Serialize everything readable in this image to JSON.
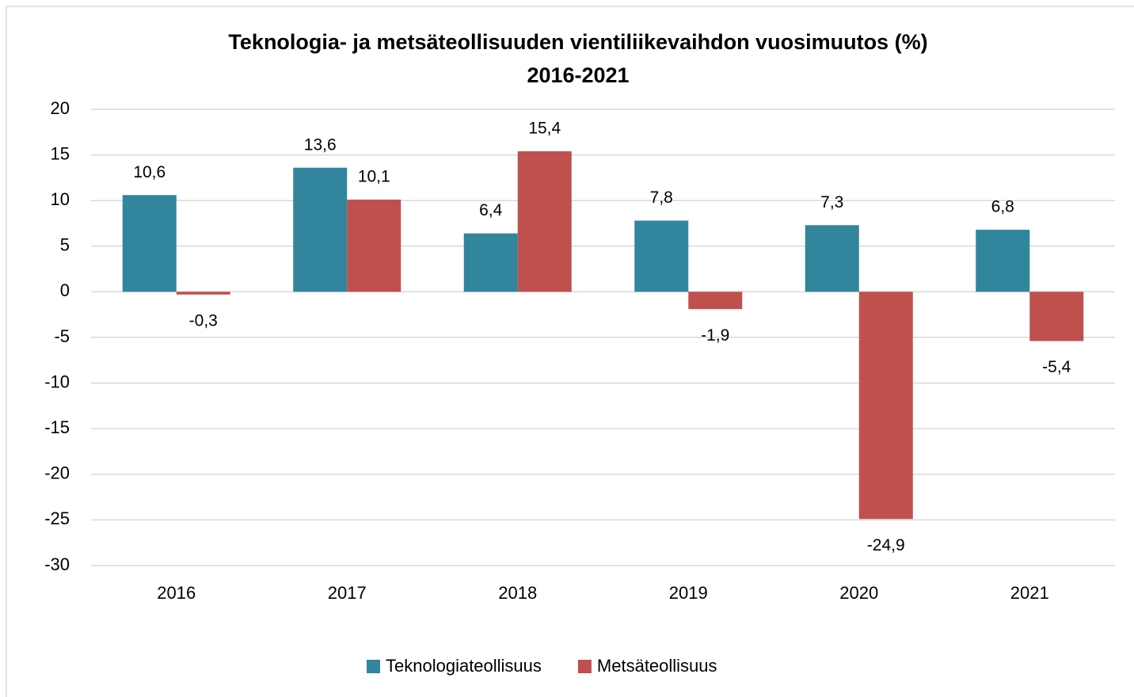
{
  "chart_data": {
    "type": "bar",
    "title": [
      "Teknologia- ja metsäteollisuuden vientiliikevaihdon vuosimuutos (%)",
      "2016-2021"
    ],
    "categories": [
      "2016",
      "2017",
      "2018",
      "2019",
      "2020",
      "2021"
    ],
    "series": [
      {
        "name": "Teknologiateollisuus",
        "color": "#31859c",
        "values": [
          10.6,
          13.6,
          6.4,
          7.8,
          7.3,
          6.8
        ],
        "value_labels": [
          "10,6",
          "13,6",
          "6,4",
          "7,8",
          "7,3",
          "6,8"
        ]
      },
      {
        "name": "Metsäteollisuus",
        "color": "#c0504d",
        "values": [
          -0.3,
          10.1,
          15.4,
          -1.9,
          -24.9,
          -5.4
        ],
        "value_labels": [
          "-0,3",
          "10,1",
          "15,4",
          "-1,9",
          "-24,9",
          "-5,4"
        ]
      }
    ],
    "ylim": [
      -30,
      20
    ],
    "yticks": [
      -30,
      -25,
      -20,
      -15,
      -10,
      -5,
      0,
      5,
      10,
      15,
      20
    ],
    "grid": true,
    "legend": "bottom"
  }
}
